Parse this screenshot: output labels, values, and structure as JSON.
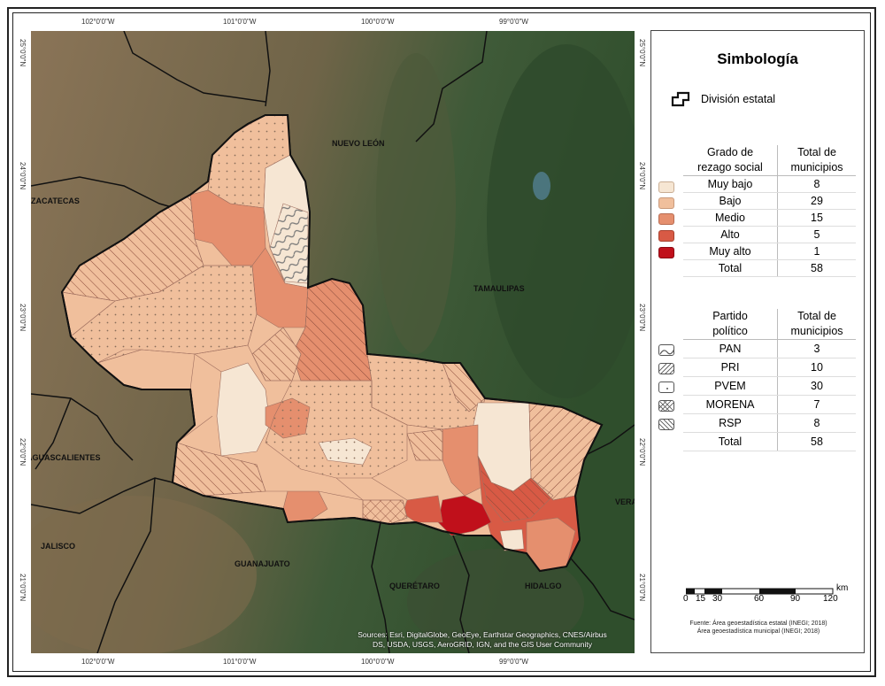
{
  "map": {
    "lon_labels": [
      "102°0'0\"W",
      "101°0'0\"W",
      "100°0'0\"W",
      "99°0'0\"W"
    ],
    "lat_labels": [
      "25°0'0\"N",
      "24°0'0\"N",
      "23°0'0\"N",
      "22°0'0\"N",
      "21°0'0\"N"
    ],
    "place_labels": {
      "nuevo_leon": "NUEVO LEÓN",
      "tamaulipas": "TAMAULIPAS",
      "zacatecas": "ZACATECAS",
      "aguascalientes": "AGUASCALIENTES",
      "jalisco": "JALISCO",
      "guanajuato": "GUANAJUATO",
      "queretaro": "QUERÉTARO",
      "hidalgo": "HIDALGO",
      "veracruz": "VERA"
    },
    "credits_line1": "Sources: Esri, DigitalGlobe, GeoEye, Earthstar Geographics, CNES/Airbus",
    "credits_line2": "DS, USDA, USGS, AeroGRID, IGN, and the GIS User Community"
  },
  "legend": {
    "title": "Simbología",
    "division_label": "División estatal",
    "rezago": {
      "header_col1": [
        "Grado de",
        "rezago social"
      ],
      "header_col2": [
        "Total de",
        "municipios"
      ],
      "rows": [
        {
          "label": "Muy bajo",
          "value": "8",
          "color": "#f6e6d3"
        },
        {
          "label": "Bajo",
          "value": "29",
          "color": "#f0bf9c"
        },
        {
          "label": "Medio",
          "value": "15",
          "color": "#e58f6e"
        },
        {
          "label": "Alto",
          "value": "5",
          "color": "#d85a45"
        },
        {
          "label": "Muy alto",
          "value": "1",
          "color": "#c0101b"
        }
      ],
      "total_label": "Total",
      "total_value": "58"
    },
    "partido": {
      "header_col1": [
        "Partido",
        "político"
      ],
      "header_col2": [
        "Total de",
        "municipios"
      ],
      "rows": [
        {
          "label": "PAN",
          "value": "3",
          "pattern": "wavy"
        },
        {
          "label": "PRI",
          "value": "10",
          "pattern": "hatch-right"
        },
        {
          "label": "PVEM",
          "value": "30",
          "pattern": "dots"
        },
        {
          "label": "MORENA",
          "value": "7",
          "pattern": "crosshatch"
        },
        {
          "label": "RSP",
          "value": "8",
          "pattern": "hatch-left"
        }
      ],
      "total_label": "Total",
      "total_value": "58"
    },
    "scale": {
      "labels": [
        "0",
        "15",
        "30",
        "60",
        "90",
        "120"
      ],
      "unit": "km"
    },
    "source_line1": "Fuente: Área geoestadística estatal (INEGI; 2018)",
    "source_line2": "Área geoestadística municipal (INEGI; 2018)"
  }
}
